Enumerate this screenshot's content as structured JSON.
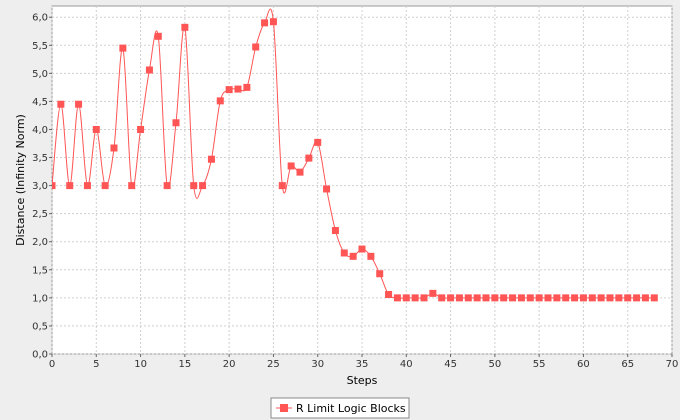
{
  "chart_data": {
    "type": "line",
    "title": "",
    "xlabel": "Steps",
    "ylabel": "Distance (Infinity Norm)",
    "xlim": [
      0,
      70
    ],
    "ylim": [
      0,
      6.2
    ],
    "x_ticks": [
      "0",
      "5",
      "10",
      "15",
      "20",
      "25",
      "30",
      "35",
      "40",
      "45",
      "50",
      "55",
      "60",
      "65",
      "70"
    ],
    "y_ticks": [
      "0,0",
      "0,5",
      "1,0",
      "1,5",
      "2,0",
      "2,5",
      "3,0",
      "3,5",
      "4,0",
      "4,5",
      "5,0",
      "5,5",
      "6,0"
    ],
    "grid": true,
    "legend_position": "bottom",
    "series": [
      {
        "name": "R Limit Logic Blocks",
        "color": "#ff5555",
        "x": [
          0,
          1,
          2,
          3,
          4,
          5,
          6,
          7,
          8,
          9,
          10,
          11,
          12,
          13,
          14,
          15,
          16,
          17,
          18,
          19,
          20,
          21,
          22,
          23,
          24,
          25,
          26,
          27,
          28,
          29,
          30,
          31,
          32,
          33,
          34,
          35,
          36,
          37,
          38,
          39,
          40,
          41,
          42,
          43,
          44,
          45,
          46,
          47,
          48,
          49,
          50,
          51,
          52,
          53,
          54,
          55,
          56,
          57,
          58,
          59,
          60,
          61,
          62,
          63,
          64,
          65,
          66,
          67,
          68
        ],
        "values": [
          3.0,
          4.45,
          3.0,
          4.45,
          3.0,
          4.0,
          3.0,
          3.67,
          5.45,
          3.0,
          4.0,
          5.06,
          5.66,
          3.0,
          4.12,
          5.82,
          3.0,
          3.0,
          3.47,
          4.51,
          4.71,
          4.72,
          4.75,
          5.47,
          5.9,
          5.92,
          3.0,
          3.35,
          3.24,
          3.49,
          3.77,
          2.94,
          2.2,
          1.8,
          1.74,
          1.87,
          1.74,
          1.43,
          1.06,
          1.0,
          1.0,
          1.0,
          1.0,
          1.08,
          1.0,
          1.0,
          1.0,
          1.0,
          1.0,
          1.0,
          1.0,
          1.0,
          1.0,
          1.0,
          1.0,
          1.0,
          1.0,
          1.0,
          1.0,
          1.0,
          1.0,
          1.0,
          1.0,
          1.0,
          1.0,
          1.0,
          1.0,
          1.0,
          1.0
        ]
      }
    ]
  }
}
